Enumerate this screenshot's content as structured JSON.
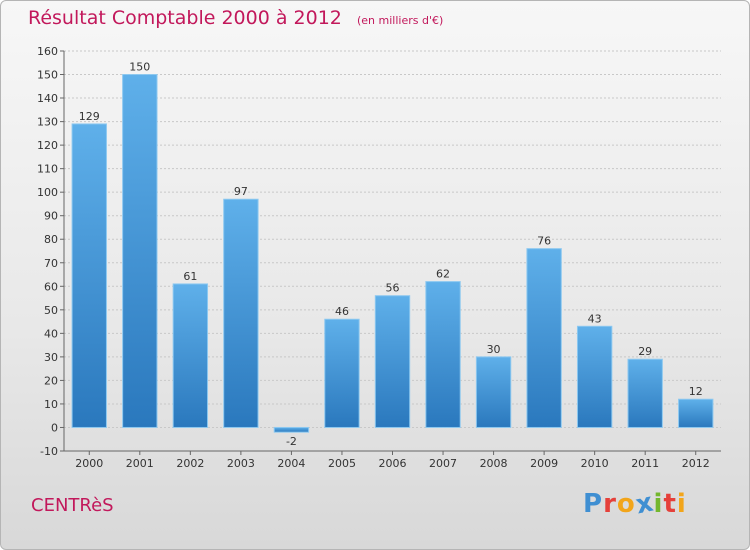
{
  "header": {
    "title": "Résultat Comptable 2000 à 2012",
    "subtitle": "(en milliers d'€)"
  },
  "footer": {
    "commune": "CENTRèS",
    "logo": {
      "text": "Proxiti",
      "letters": [
        {
          "ch": "P",
          "color": "#3f8fd2"
        },
        {
          "ch": "r",
          "color": "#e5403a"
        },
        {
          "ch": "o",
          "color": "#f2a51a"
        },
        {
          "ch": "x",
          "color": "#3f8fd2"
        },
        {
          "ch": "i",
          "color": "#74b72e"
        },
        {
          "ch": "t",
          "color": "#e5403a"
        },
        {
          "ch": "i",
          "color": "#f2a51a"
        }
      ]
    }
  },
  "colors": {
    "bar_light": "#5fb0ea",
    "bar_dark": "#2a78bd",
    "accent": "#c2185b"
  },
  "chart_data": {
    "type": "bar",
    "categories": [
      "2000",
      "2001",
      "2002",
      "2003",
      "2004",
      "2005",
      "2006",
      "2007",
      "2008",
      "2009",
      "2010",
      "2011",
      "2012"
    ],
    "values": [
      129,
      150,
      61,
      97,
      -2,
      46,
      56,
      62,
      30,
      76,
      43,
      29,
      12
    ],
    "title": "Résultat Comptable 2000 à 2012",
    "subtitle": "(en milliers d'€)",
    "xlabel": "",
    "ylabel": "",
    "ylim": [
      -10,
      160
    ],
    "yticks": [
      -10,
      0,
      10,
      20,
      30,
      40,
      50,
      60,
      70,
      80,
      90,
      100,
      110,
      120,
      130,
      140,
      150,
      160
    ],
    "grid": true,
    "legend": "none"
  }
}
